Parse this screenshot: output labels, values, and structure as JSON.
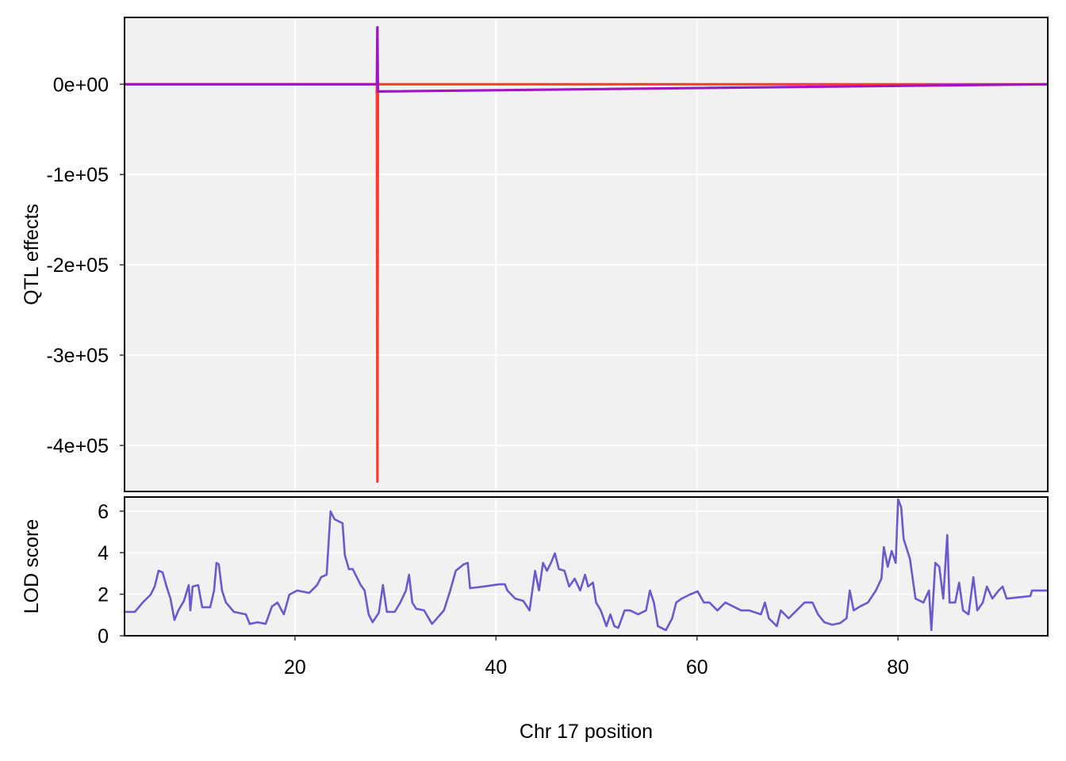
{
  "chart_data": [
    {
      "type": "line",
      "ylabel": "QTL effects",
      "x": [
        3.04,
        28.15,
        28.2,
        28.25,
        94.83
      ],
      "series": [
        {
          "color": "#ff3b30",
          "values": [
            0,
            0,
            -440000,
            0,
            0
          ]
        },
        {
          "color": "#a114c4",
          "values": [
            0,
            0,
            63000,
            -8000,
            0
          ]
        }
      ],
      "xlim": [
        3.04,
        94.9
      ],
      "ylim": [
        -451000,
        74000
      ],
      "xticks": [
        20,
        40,
        60,
        80
      ],
      "yticks": [
        {
          "value": -400000,
          "label": "-4e+05"
        },
        {
          "value": -300000,
          "label": "-3e+05"
        },
        {
          "value": -200000,
          "label": "-2e+05"
        },
        {
          "value": -100000,
          "label": "-1e+05"
        },
        {
          "value": 0,
          "label": "0e+00"
        }
      ],
      "grid": true
    },
    {
      "type": "line",
      "ylabel": "LOD score",
      "xlabel": "Chr 17 position",
      "color": "#6a5acd",
      "x": [
        3.04,
        4.07,
        4.85,
        5.64,
        6.04,
        6.43,
        6.83,
        7.22,
        7.61,
        8.01,
        8.4,
        8.95,
        9.43,
        9.59,
        9.82,
        10.37,
        10.77,
        11.56,
        11.95,
        12.19,
        12.42,
        12.74,
        13.13,
        13.92,
        15.11,
        15.5,
        16.29,
        17.08,
        17.71,
        18.26,
        18.89,
        19.44,
        20.23,
        21.41,
        22.2,
        22.6,
        23.15,
        23.54,
        23.94,
        24.73,
        24.96,
        25.36,
        25.75,
        26.54,
        26.93,
        27.33,
        27.72,
        28.35,
        28.75,
        29.14,
        29.93,
        30.48,
        31.04,
        31.35,
        31.67,
        32.06,
        32.85,
        33.64,
        34.82,
        35.45,
        36.0,
        36.79,
        37.19,
        37.42,
        38.76,
        40.34,
        40.89,
        41.13,
        41.92,
        42.71,
        43.34,
        43.89,
        44.28,
        44.68,
        45.07,
        45.47,
        45.86,
        46.26,
        46.81,
        47.28,
        47.83,
        48.38,
        48.86,
        49.17,
        49.65,
        49.96,
        50.43,
        50.99,
        51.38,
        51.78,
        52.17,
        52.8,
        53.35,
        54.14,
        54.93,
        55.32,
        55.71,
        56.11,
        56.9,
        57.53,
        57.93,
        58.48,
        59.27,
        60.06,
        60.69,
        61.24,
        62.03,
        62.82,
        63.6,
        64.39,
        65.18,
        66.36,
        66.76,
        67.15,
        67.94,
        68.34,
        69.12,
        69.91,
        70.7,
        71.49,
        72.04,
        72.67,
        73.46,
        74.25,
        74.88,
        75.2,
        75.59,
        76.22,
        77.01,
        77.8,
        78.35,
        78.59,
        78.98,
        79.37,
        79.77,
        80.01,
        80.32,
        80.56,
        81.19,
        81.74,
        82.53,
        83.08,
        83.32,
        83.71,
        84.11,
        84.5,
        84.9,
        85.13,
        85.69,
        86.08,
        86.47,
        87.02,
        87.5,
        87.89,
        88.44,
        88.84,
        89.39,
        90.02,
        90.41,
        90.81,
        93.17,
        93.33,
        94.83
      ],
      "values": [
        1.15,
        1.15,
        1.6,
        1.98,
        2.37,
        3.13,
        3.05,
        2.37,
        1.79,
        0.76,
        1.22,
        1.68,
        2.44,
        1.22,
        2.37,
        2.44,
        1.37,
        1.37,
        2.18,
        3.51,
        3.44,
        2.18,
        1.6,
        1.15,
        1.03,
        0.57,
        0.65,
        0.57,
        1.41,
        1.6,
        1.03,
        1.98,
        2.18,
        2.06,
        2.44,
        2.82,
        2.94,
        5.99,
        5.61,
        5.42,
        3.89,
        3.21,
        3.21,
        2.44,
        2.18,
        1.03,
        0.65,
        1.11,
        2.44,
        1.15,
        1.15,
        1.6,
        2.18,
        2.94,
        1.6,
        1.3,
        1.22,
        0.57,
        1.22,
        2.18,
        3.13,
        3.44,
        3.51,
        2.29,
        2.37,
        2.48,
        2.48,
        2.18,
        1.79,
        1.68,
        1.22,
        3.13,
        2.18,
        3.51,
        3.13,
        3.51,
        3.97,
        3.21,
        3.13,
        2.37,
        2.75,
        2.18,
        2.94,
        2.37,
        2.56,
        1.6,
        1.22,
        0.46,
        1.03,
        0.46,
        0.38,
        1.22,
        1.22,
        1.03,
        1.22,
        2.18,
        1.6,
        0.46,
        0.27,
        0.84,
        1.6,
        1.79,
        1.98,
        2.14,
        1.6,
        1.6,
        1.22,
        1.6,
        1.41,
        1.22,
        1.22,
        1.03,
        1.6,
        0.84,
        0.46,
        1.22,
        0.84,
        1.22,
        1.6,
        1.6,
        1.03,
        0.65,
        0.53,
        0.61,
        0.84,
        2.18,
        1.22,
        1.41,
        1.6,
        2.18,
        2.75,
        4.27,
        3.32,
        4.08,
        3.51,
        6.57,
        6.18,
        4.66,
        3.7,
        1.79,
        1.6,
        2.18,
        0.27,
        3.51,
        3.32,
        1.79,
        4.85,
        1.6,
        1.6,
        2.56,
        1.22,
        1.03,
        2.82,
        1.22,
        1.6,
        2.37,
        1.79,
        2.18,
        2.37,
        1.79,
        1.91,
        2.18,
        2.18
      ],
      "xlim": [
        3.04,
        94.9
      ],
      "ylim": [
        0,
        6.68
      ],
      "xticks": [
        20,
        40,
        60,
        80
      ],
      "yticks": [
        0,
        2,
        4,
        6
      ],
      "grid": true
    }
  ]
}
